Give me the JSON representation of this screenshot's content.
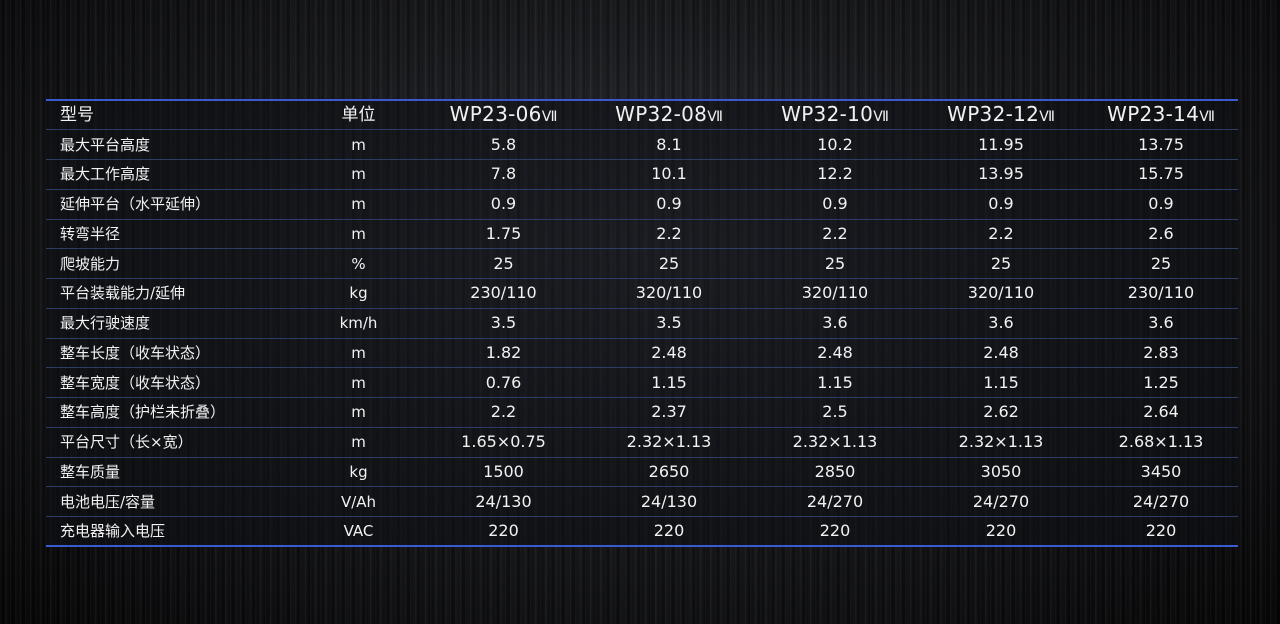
{
  "table": {
    "header": {
      "name": "型号",
      "unit": "单位",
      "models": [
        {
          "base": "WP23-06",
          "suffix": "Ⅶ"
        },
        {
          "base": "WP32-08",
          "suffix": "Ⅶ"
        },
        {
          "base": "WP32-10",
          "suffix": "Ⅶ"
        },
        {
          "base": "WP32-12",
          "suffix": "Ⅶ"
        },
        {
          "base": "WP23-14",
          "suffix": "Ⅶ"
        }
      ]
    },
    "rows": [
      {
        "name": "最大平台高度",
        "unit": "m",
        "values": [
          "5.8",
          "8.1",
          "10.2",
          "11.95",
          "13.75"
        ]
      },
      {
        "name": "最大工作高度",
        "unit": "m",
        "values": [
          "7.8",
          "10.1",
          "12.2",
          "13.95",
          "15.75"
        ]
      },
      {
        "name": "延伸平台（水平延伸）",
        "unit": "m",
        "values": [
          "0.9",
          "0.9",
          "0.9",
          "0.9",
          "0.9"
        ]
      },
      {
        "name": "转弯半径",
        "unit": "m",
        "values": [
          "1.75",
          "2.2",
          "2.2",
          "2.2",
          "2.6"
        ]
      },
      {
        "name": "爬坡能力",
        "unit": "%",
        "values": [
          "25",
          "25",
          "25",
          "25",
          "25"
        ]
      },
      {
        "name": "平台装载能力/延伸",
        "unit": "kg",
        "values": [
          "230/110",
          "320/110",
          "320/110",
          "320/110",
          "230/110"
        ]
      },
      {
        "name": "最大行驶速度",
        "unit": "km/h",
        "values": [
          "3.5",
          "3.5",
          "3.6",
          "3.6",
          "3.6"
        ]
      },
      {
        "name": "整车长度（收车状态）",
        "unit": "m",
        "values": [
          "1.82",
          "2.48",
          "2.48",
          "2.48",
          "2.83"
        ]
      },
      {
        "name": "整车宽度（收车状态）",
        "unit": "m",
        "values": [
          "0.76",
          "1.15",
          "1.15",
          "1.15",
          "1.25"
        ]
      },
      {
        "name": "整车高度（护栏未折叠）",
        "unit": "m",
        "values": [
          "2.2",
          "2.37",
          "2.5",
          "2.62",
          "2.64"
        ]
      },
      {
        "name": "平台尺寸（长×宽）",
        "unit": "m",
        "values": [
          "1.65×0.75",
          "2.32×1.13",
          "2.32×1.13",
          "2.32×1.13",
          "2.68×1.13"
        ]
      },
      {
        "name": "整车质量",
        "unit": "kg",
        "values": [
          "1500",
          "2650",
          "2850",
          "3050",
          "3450"
        ]
      },
      {
        "name": "电池电压/容量",
        "unit": "V/Ah",
        "values": [
          "24/130",
          "24/130",
          "24/270",
          "24/270",
          "24/270"
        ]
      },
      {
        "name": "充电器输入电压",
        "unit": "VAC",
        "values": [
          "220",
          "220",
          "220",
          "220",
          "220"
        ]
      }
    ]
  }
}
